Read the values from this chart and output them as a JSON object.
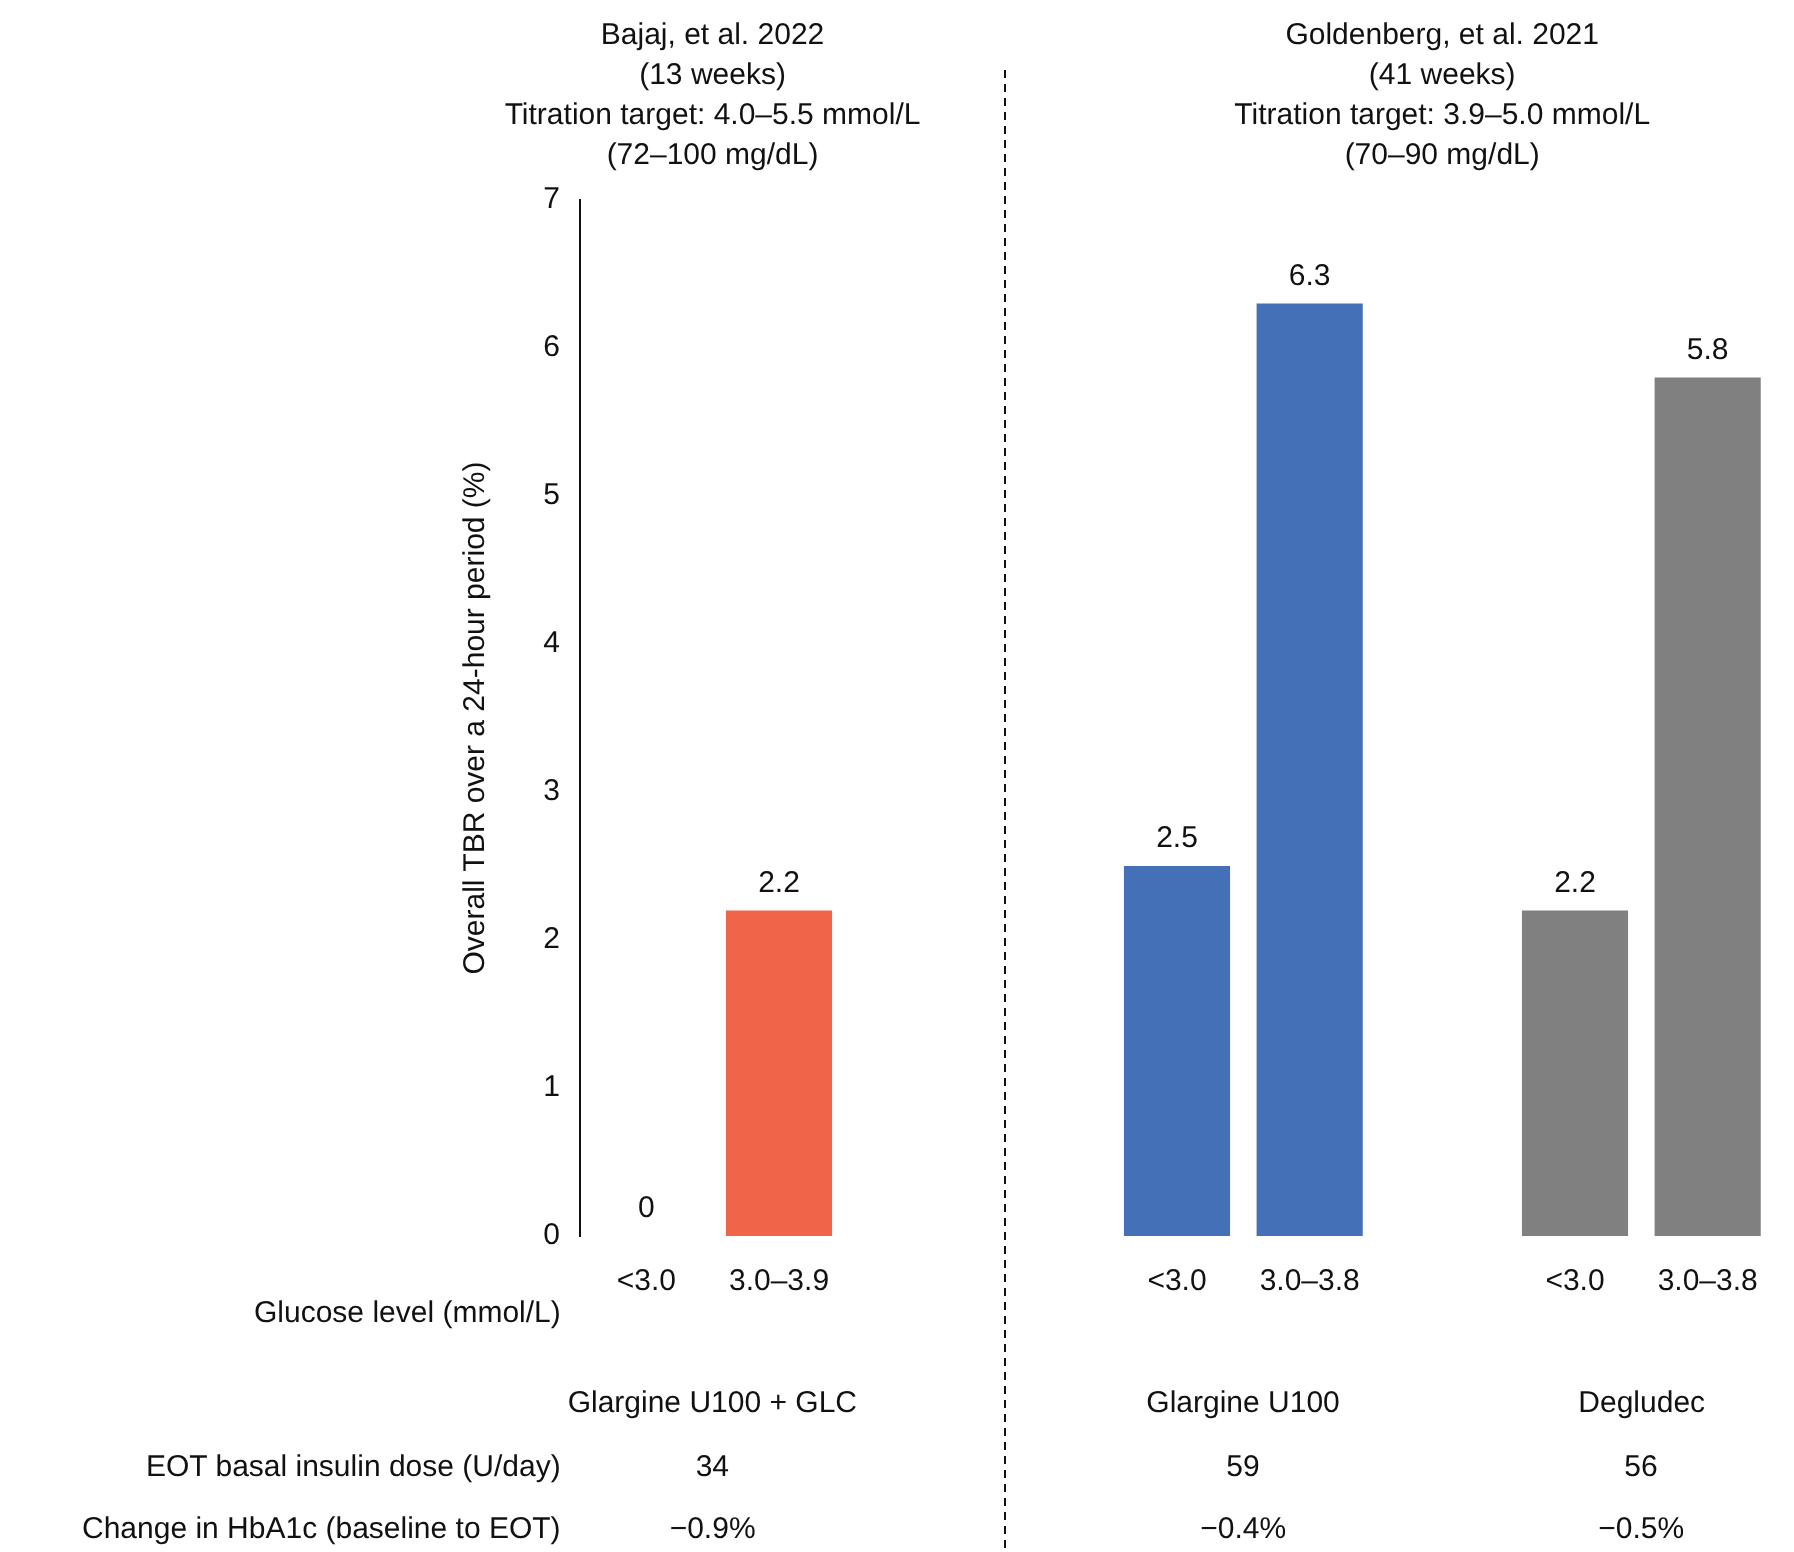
{
  "chart_data": {
    "type": "bar",
    "xlabel": "Glucose level (mmol/L)",
    "ylabel": "Overall TBR over a 24-hour period (%)",
    "categories": [
      "<3.0",
      "3.0–3.9",
      null,
      null,
      "<3.0",
      "3.0–3.8",
      null,
      "<3.0",
      "3.0–3.8"
    ],
    "values": [
      0,
      2.2,
      null,
      null,
      2.5,
      6.3,
      null,
      2.2,
      5.8
    ],
    "colors": [
      "#f0654a",
      "#f0654a",
      null,
      null,
      "#4470b8",
      "#4470b8",
      null,
      "#808080",
      "#808080"
    ],
    "ylim": [
      0,
      7
    ],
    "yticks": [
      0,
      1,
      2,
      3,
      4,
      5,
      6,
      7
    ],
    "grid": false,
    "legend": false,
    "data_labels": true,
    "annotations": [
      "Bajaj, et al. 2022\n(13 weeks)\nTitration target: 4.0–5.5 mmol/L\n(72–100 mg/dL)",
      "Goldenberg, et al. 2021\n(41 weeks)\nTitration target: 3.9–5.0 mmol/L\n(70–90 mg/dL)",
      "Glargine U100 + GLC",
      "Glargine U100",
      "Degludec",
      "EOT basal insulin dose (U/day)",
      "34",
      "59",
      "56",
      "Change in HbA1c (baseline to EOT)",
      "−0.9%",
      "−0.4%",
      "−0.5%"
    ]
  }
}
